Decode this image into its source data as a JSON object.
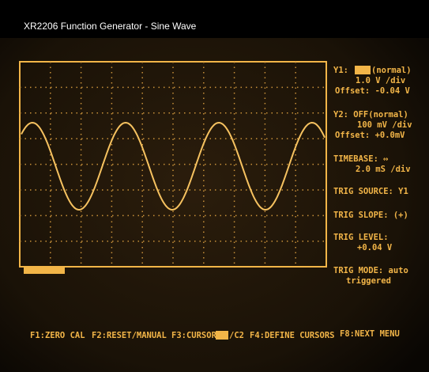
{
  "header": {
    "title": "XR2206 Function Generator  -  Sine Wave"
  },
  "panel": {
    "y1": {
      "label": "Y1:",
      "mode": "(normal)",
      "scale": "1.0  V /div",
      "offset": "Offset: -0.04 V"
    },
    "y2": {
      "label": "Y2:  OFF(normal)",
      "scale": "100 mV /div",
      "offset": "Offset: +0.0mV"
    },
    "timebase": {
      "label": "TIMEBASE:",
      "scale": "2.0 mS /div"
    },
    "trig_source": "TRIG SOURCE: Y1",
    "trig_slope": "TRIG SLOPE:  (+)",
    "trig_level": {
      "label": "TRIG LEVEL:",
      "value": "+0.04 V"
    },
    "trig_mode": {
      "label": "TRIG MODE: auto",
      "state": "triggered"
    }
  },
  "softkeys": {
    "f1": "F1:ZERO CAL",
    "f2": "F2:RESET/MANUAL",
    "f3": "F3:CURSOR",
    "f3_suffix": "/C2",
    "f4": "F4:DEFINE CURSORS",
    "f8": "F8:NEXT MENU"
  }
}
